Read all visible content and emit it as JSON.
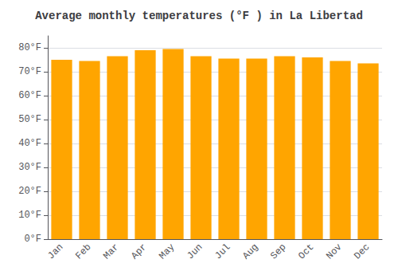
{
  "chart_data": {
    "type": "bar",
    "title": "Average monthly temperatures (°F ) in La Libertad",
    "categories": [
      "Jan",
      "Feb",
      "Mar",
      "Apr",
      "May",
      "Jun",
      "Jul",
      "Aug",
      "Sep",
      "Oct",
      "Nov",
      "Dec"
    ],
    "values": [
      75.0,
      74.5,
      76.5,
      79.0,
      79.5,
      76.5,
      75.5,
      75.5,
      76.5,
      76.0,
      74.5,
      73.5
    ],
    "color": "#FFA500",
    "ylim": [
      0,
      85
    ],
    "yticks": [
      {
        "value": 0,
        "label": "0°F"
      },
      {
        "value": 10,
        "label": "10°F"
      },
      {
        "value": 20,
        "label": "20°F"
      },
      {
        "value": 30,
        "label": "30°F"
      },
      {
        "value": 40,
        "label": "40°F"
      },
      {
        "value": 50,
        "label": "50°F"
      },
      {
        "value": 60,
        "label": "60°F"
      },
      {
        "value": 70,
        "label": "70°F"
      },
      {
        "value": 80,
        "label": "80°F"
      }
    ],
    "grid": true
  }
}
